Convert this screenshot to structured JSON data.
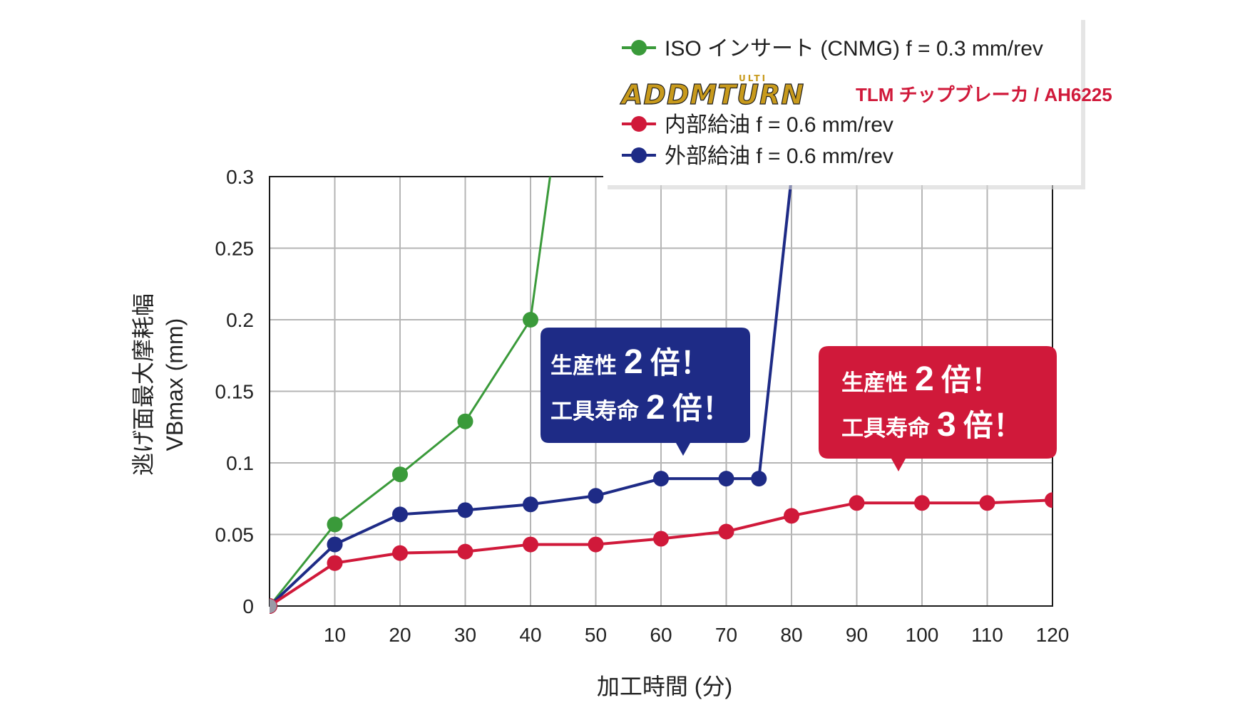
{
  "colors": {
    "iso": "#3a9a3a",
    "internal": "#d0193a",
    "external": "#1e2b86",
    "grid": "#b5b5b5",
    "tlm_red": "#d0193a",
    "logo_gold": "#c89a1c",
    "logo_dark": "#1e1e1e"
  },
  "legend": {
    "iso_label": "ISO インサート (CNMG) f = 0.3 mm/rev",
    "brand_logo_text": "ADDMTURN",
    "brand_logo_small": "ULTI",
    "brand_suffix": "TLM チップブレーカ / AH6225",
    "internal_label": "内部給油 f = 0.6 mm/rev",
    "external_label": "外部給油 f = 0.6 mm/rev"
  },
  "callouts": {
    "external": {
      "line1_prefix": "生産性",
      "line1_num": "2",
      "line1_suffix": "倍！",
      "line2_prefix": "工具寿命",
      "line2_num": "2",
      "line2_suffix": "倍！"
    },
    "internal": {
      "line1_prefix": "生産性",
      "line1_num": "2",
      "line1_suffix": "倍！",
      "line2_prefix": "工具寿命",
      "line2_num": "3",
      "line2_suffix": "倍！"
    }
  },
  "chart_data": {
    "type": "line",
    "xlabel": "加工時間 (分)",
    "ylabel_line1": "逃げ面最大摩耗幅",
    "ylabel_line2": "VBmax (mm)",
    "xlim": [
      0,
      120
    ],
    "ylim": [
      0,
      0.3
    ],
    "grid": true,
    "legend_position": "top-right",
    "x_ticks": [
      10,
      20,
      30,
      40,
      50,
      60,
      70,
      80,
      90,
      100,
      110,
      120
    ],
    "x_tick_labels": [
      "10",
      "20",
      "30",
      "40",
      "50",
      "60",
      "70",
      "80",
      "90",
      "100",
      "110",
      "120"
    ],
    "y_ticks": [
      0,
      0.05,
      0.1,
      0.15,
      0.2,
      0.25,
      0.3
    ],
    "y_tick_labels": [
      "0",
      "0.05",
      "0.1",
      "0.15",
      "0.2",
      "0.25",
      "0.3"
    ],
    "series": [
      {
        "key": "iso",
        "name": "ISO インサート (CNMG) f = 0.3 mm/rev",
        "points": [
          [
            0,
            0
          ],
          [
            10,
            0.057
          ],
          [
            20,
            0.092
          ],
          [
            30,
            0.129
          ],
          [
            40,
            0.2
          ]
        ],
        "line_extends_to": [
          43,
          0.3
        ]
      },
      {
        "key": "external",
        "name": "外部給油 f = 0.6 mm/rev",
        "points": [
          [
            0,
            0
          ],
          [
            10,
            0.043
          ],
          [
            20,
            0.064
          ],
          [
            30,
            0.067
          ],
          [
            40,
            0.071
          ],
          [
            50,
            0.077
          ],
          [
            60,
            0.089
          ],
          [
            70,
            0.089
          ],
          [
            75,
            0.089
          ]
        ],
        "line_extends_to": [
          80,
          0.3
        ]
      },
      {
        "key": "internal",
        "name": "内部給油 f = 0.6 mm/rev",
        "points": [
          [
            0,
            0
          ],
          [
            10,
            0.03
          ],
          [
            20,
            0.037
          ],
          [
            30,
            0.038
          ],
          [
            40,
            0.043
          ],
          [
            50,
            0.043
          ],
          [
            60,
            0.047
          ],
          [
            70,
            0.052
          ],
          [
            80,
            0.063
          ],
          [
            90,
            0.072
          ],
          [
            100,
            0.072
          ],
          [
            110,
            0.072
          ],
          [
            120,
            0.074
          ]
        ]
      }
    ]
  }
}
